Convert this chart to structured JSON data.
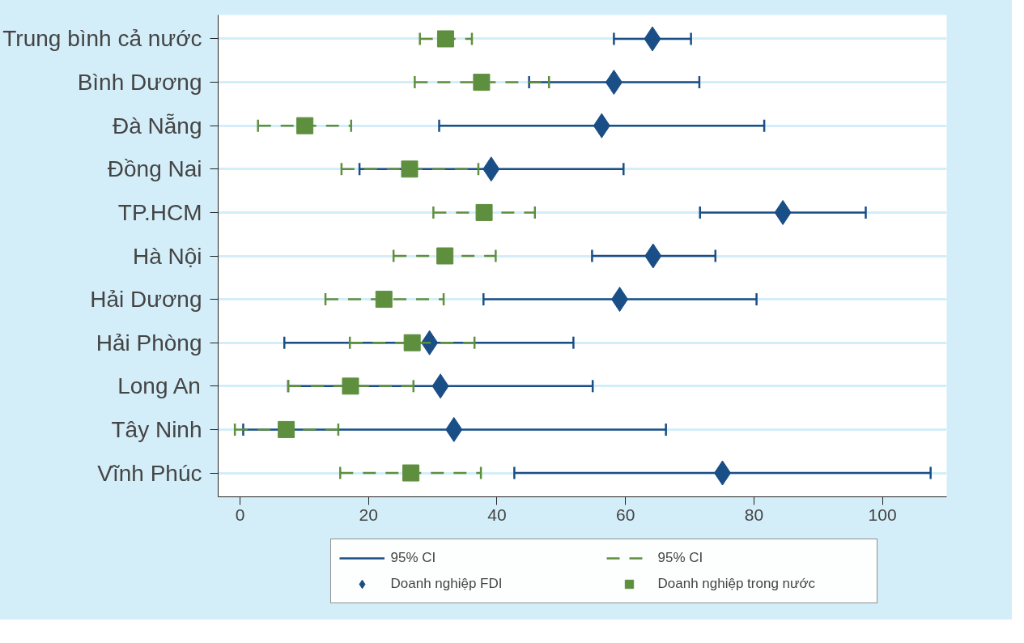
{
  "chart_data": {
    "type": "scatter",
    "orientation": "horizontal",
    "categories": [
      "Trung bình cả nước",
      "Bình Dương",
      "Đà Nẵng",
      "Đồng Nai",
      "TP.HCM",
      "Hà Nội",
      "Hải Dương",
      "Hải Phòng",
      "Long An",
      "Tây Ninh",
      "Vĩnh Phúc"
    ],
    "series": [
      {
        "name": "Doanh nghiệp FDI",
        "color": "#1a4e86",
        "marker": "diamond",
        "line_style": "solid",
        "values": [
          64.2,
          58.2,
          56.3,
          39.1,
          84.5,
          64.3,
          59.1,
          29.5,
          31.2,
          33.3,
          75.1
        ],
        "errors": [
          [
            58.2,
            70.2
          ],
          [
            45.0,
            71.5
          ],
          [
            31.0,
            81.6
          ],
          [
            18.6,
            59.7
          ],
          [
            71.6,
            97.4
          ],
          [
            54.8,
            74.0
          ],
          [
            37.9,
            80.4
          ],
          [
            6.9,
            51.9
          ],
          [
            7.5,
            54.9
          ],
          [
            0.5,
            66.3
          ],
          [
            42.7,
            107.5
          ]
        ]
      },
      {
        "name": "Doanh nghiệp trong nước",
        "color": "#5e8f3e",
        "marker": "square",
        "line_style": "dashed",
        "values": [
          32.0,
          37.6,
          10.1,
          26.4,
          38.0,
          31.9,
          22.4,
          26.8,
          17.2,
          7.2,
          26.6
        ],
        "errors": [
          [
            28.0,
            36.1
          ],
          [
            27.2,
            48.1
          ],
          [
            2.8,
            17.3
          ],
          [
            15.8,
            37.1
          ],
          [
            30.1,
            45.9
          ],
          [
            23.9,
            39.8
          ],
          [
            13.3,
            31.7
          ],
          [
            17.1,
            36.5
          ],
          [
            7.5,
            27.0
          ],
          [
            -0.8,
            15.3
          ],
          [
            15.6,
            37.5
          ]
        ]
      }
    ],
    "annotations": [
      "95% CI",
      "95% CI"
    ],
    "xlim": [
      -3.4,
      110
    ],
    "xticks": [
      0,
      20,
      40,
      60,
      80,
      100
    ],
    "grid": "y",
    "legend": "bottom"
  }
}
